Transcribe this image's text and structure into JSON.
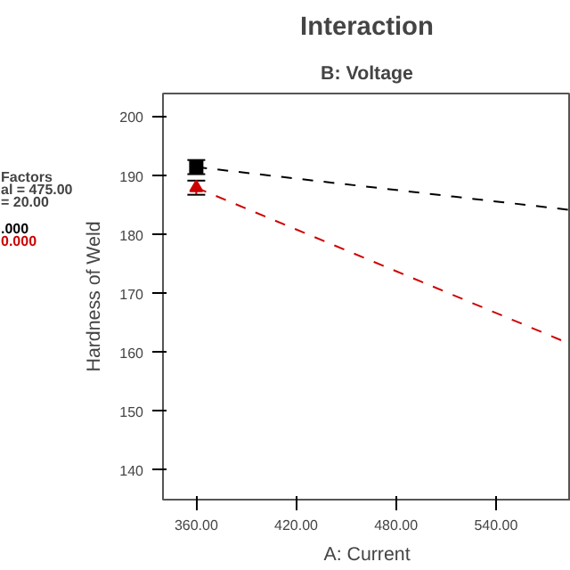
{
  "chart_data": {
    "type": "line",
    "title": "Interaction",
    "subtitle": "B: Voltage",
    "xlabel": "A: Current",
    "ylabel": "Hardness of Weld",
    "annotations": [
      "Factors",
      "al = 475.00",
      "= 20.00"
    ],
    "x": [
      360,
      585
    ],
    "series": [
      {
        "name": ".000",
        "color": "#000000",
        "values": [
          191.5,
          184.2
        ],
        "marker": "square",
        "errors": [
          1.2,
          null
        ]
      },
      {
        "name": "0.000",
        "color": "#cc0000",
        "values": [
          188,
          161.4
        ],
        "marker": "triangle",
        "errors": [
          1.2,
          null
        ]
      }
    ],
    "line_style": "dashed",
    "xlim": [
      340,
      585
    ],
    "xticks": [
      {
        "value": 360,
        "label": "360.00"
      },
      {
        "value": 420,
        "label": "420.00"
      },
      {
        "value": 480,
        "label": "480.00"
      },
      {
        "value": 540,
        "label": "540.00"
      }
    ],
    "ylim": [
      135,
      204
    ],
    "yticks": [
      140,
      150,
      160,
      170,
      180,
      190,
      200
    ],
    "grid": false
  }
}
